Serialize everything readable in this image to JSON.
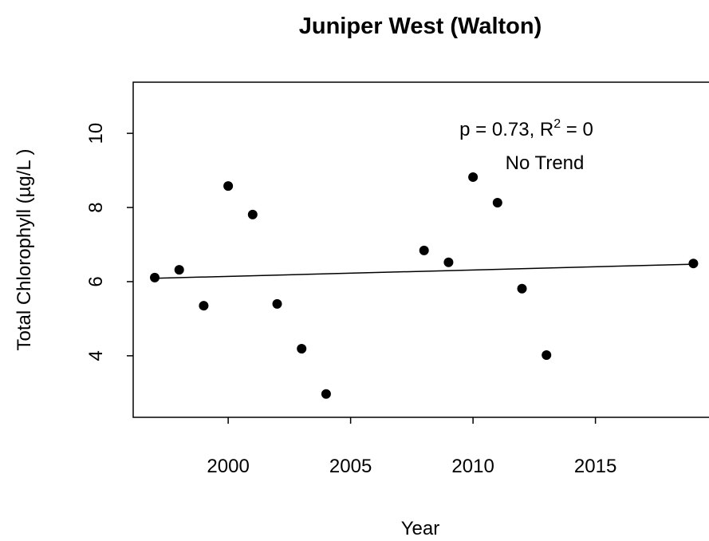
{
  "chart_data": {
    "type": "scatter",
    "title": "Juniper West (Walton)",
    "x_label": "Year",
    "y_label": "Total Chlorophyll (µg/L )",
    "x": [
      1997,
      1998,
      1999,
      2000,
      2001,
      2002,
      2003,
      2004,
      2008,
      2009,
      2010,
      2011,
      2012,
      2013,
      2019
    ],
    "series": [
      {
        "values": [
          6.11,
          6.32,
          5.35,
          8.58,
          7.81,
          5.4,
          4.19,
          2.97,
          6.84,
          6.52,
          8.82,
          8.13,
          5.81,
          4.02,
          6.49
        ],
        "color": "#000000"
      }
    ],
    "trend": {
      "x": [
        1997,
        2019
      ],
      "values": [
        6.09,
        6.47
      ],
      "color": "#000000"
    },
    "annotation": {
      "stat_text": "p = 0.73, R",
      "superscript": "2",
      "stat_tail": " = 0",
      "trend_text": "No Trend"
    },
    "xlim": [
      1996.12,
      2019.88
    ],
    "xticks": [
      2000,
      2005,
      2010,
      2015
    ],
    "ylim": [
      2.34,
      11.38
    ],
    "yticks": [
      4,
      6,
      8,
      10
    ]
  }
}
